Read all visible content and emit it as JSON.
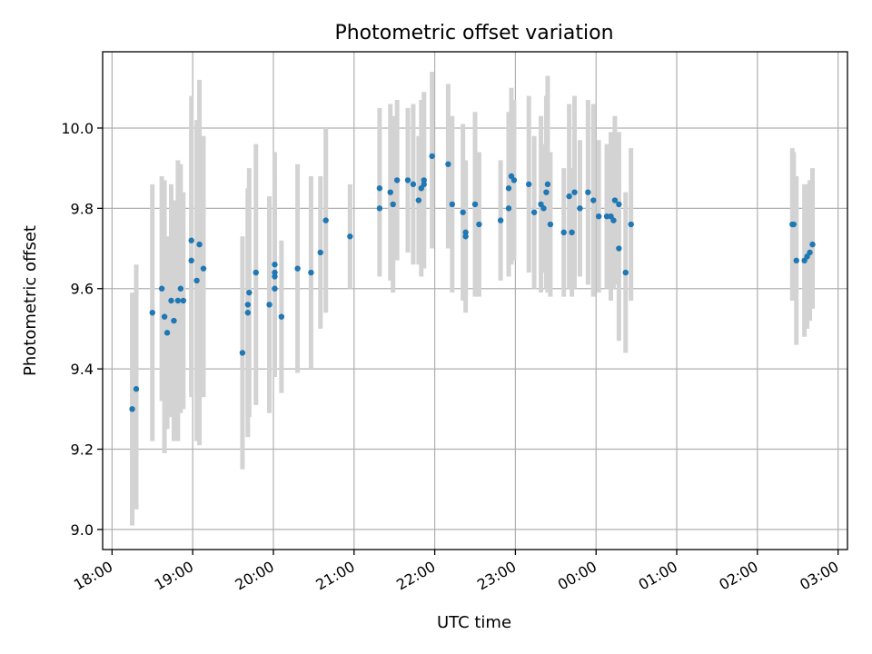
{
  "chart_data": {
    "type": "scatter",
    "title": "Photometric offset variation",
    "xlabel": "UTC time",
    "ylabel": "Photometric offset",
    "grid": true,
    "xlim": [
      "17:53",
      "03:07"
    ],
    "ylim": [
      8.95,
      10.19
    ],
    "x_axis_type": "time",
    "x_ticks": [
      "18:00",
      "19:00",
      "20:00",
      "21:00",
      "22:00",
      "23:00",
      "00:00",
      "01:00",
      "02:00",
      "03:00"
    ],
    "y_ticks": [
      9.0,
      9.2,
      9.4,
      9.6,
      9.8,
      10.0
    ],
    "y_tick_labels": [
      "9.0",
      "9.2",
      "9.4",
      "9.6",
      "9.8",
      "10.0"
    ],
    "point_color": "#1f77b4",
    "errorbar_color": "#d3d3d3",
    "series": [
      {
        "x": [
          "18:15",
          "18:18",
          "18:30",
          "18:37",
          "18:39",
          "18:41",
          "18:44",
          "18:46",
          "18:49",
          "18:51",
          "18:53",
          "18:59",
          "18:59",
          "19:03",
          "19:05",
          "19:08",
          "19:37",
          "19:41",
          "19:41",
          "19:42",
          "19:47",
          "19:57",
          "20:01",
          "20:01",
          "20:01",
          "20:01",
          "20:06",
          "20:18",
          "20:28",
          "20:35",
          "20:39",
          "20:57",
          "21:19",
          "21:19",
          "21:27",
          "21:29",
          "21:32",
          "21:40",
          "21:44",
          "21:48",
          "21:50",
          "21:52",
          "21:52",
          "21:58",
          "22:10",
          "22:13",
          "22:21",
          "22:23",
          "22:23",
          "22:30",
          "22:33",
          "22:49",
          "22:55",
          "22:55",
          "22:57",
          "22:59",
          "23:10",
          "23:14",
          "23:19",
          "23:21",
          "23:23",
          "23:24",
          "23:26",
          "23:36",
          "23:40",
          "23:42",
          "23:44",
          "23:48",
          "23:54",
          "23:58",
          "00:02",
          "00:08",
          "00:11",
          "00:13",
          "00:14",
          "00:17",
          "00:17",
          "00:22",
          "00:26"
        ],
        "y": [
          9.3,
          9.35,
          9.54,
          9.6,
          9.53,
          9.49,
          9.57,
          9.52,
          9.57,
          9.6,
          9.57,
          9.67,
          9.72,
          9.62,
          9.71,
          9.65,
          9.44,
          9.54,
          9.56,
          9.59,
          9.64,
          9.56,
          9.66,
          9.64,
          9.63,
          9.6,
          9.53,
          9.65,
          9.64,
          9.69,
          9.77,
          9.73,
          9.85,
          9.8,
          9.84,
          9.81,
          9.87,
          9.87,
          9.86,
          9.82,
          9.85,
          9.87,
          9.86,
          9.93,
          9.91,
          9.81,
          9.79,
          9.73,
          9.74,
          9.81,
          9.76,
          9.77,
          9.8,
          9.85,
          9.88,
          9.87,
          9.86,
          9.79,
          9.81,
          9.8,
          9.84,
          9.86,
          9.76,
          9.74,
          9.83,
          9.74,
          9.84,
          9.8,
          9.84,
          9.82,
          9.78,
          9.78,
          9.78,
          9.77,
          9.82,
          9.81,
          9.7,
          9.64,
          9.76
        ],
        "y_low": [
          9.01,
          9.05,
          9.22,
          9.32,
          9.19,
          9.25,
          9.28,
          9.22,
          9.22,
          9.29,
          9.3,
          9.33,
          9.34,
          9.22,
          9.21,
          9.33,
          9.15,
          9.23,
          9.29,
          9.28,
          9.31,
          9.29,
          9.38,
          9.4,
          9.4,
          9.39,
          9.34,
          9.39,
          9.4,
          9.5,
          9.54,
          9.6,
          9.65,
          9.63,
          9.62,
          9.59,
          9.67,
          9.69,
          9.66,
          9.66,
          9.63,
          9.65,
          9.7,
          9.7,
          9.7,
          9.59,
          9.57,
          9.54,
          9.58,
          9.58,
          9.58,
          9.62,
          9.63,
          9.66,
          9.66,
          9.67,
          9.64,
          9.6,
          9.59,
          9.64,
          9.6,
          9.59,
          9.58,
          9.58,
          9.6,
          9.58,
          9.6,
          9.63,
          9.61,
          9.58,
          9.59,
          9.6,
          9.57,
          9.6,
          9.61,
          9.63,
          9.47,
          9.44,
          9.57
        ],
        "y_high": [
          9.59,
          9.66,
          9.86,
          9.88,
          9.87,
          9.73,
          9.86,
          9.82,
          9.92,
          9.91,
          9.84,
          10.01,
          10.08,
          10.02,
          10.12,
          9.98,
          9.73,
          9.85,
          9.83,
          9.9,
          9.96,
          9.83,
          9.94,
          9.88,
          9.86,
          9.81,
          9.72,
          9.91,
          9.88,
          9.88,
          10.0,
          9.86,
          10.05,
          9.97,
          10.06,
          10.03,
          10.07,
          10.05,
          10.06,
          9.98,
          10.07,
          10.09,
          10.02,
          10.14,
          10.11,
          10.03,
          10.01,
          9.92,
          9.9,
          10.04,
          9.94,
          9.92,
          9.97,
          10.04,
          10.1,
          10.07,
          10.08,
          9.98,
          10.03,
          9.96,
          10.08,
          10.13,
          9.94,
          9.9,
          10.06,
          9.9,
          10.08,
          9.97,
          10.07,
          10.06,
          9.97,
          9.96,
          9.99,
          9.94,
          10.03,
          9.99,
          9.93,
          9.84,
          9.95
        ]
      },
      {
        "x": [
          "02:26",
          "02:27",
          "02:29",
          "02:35",
          "02:37",
          "02:39",
          "02:41"
        ],
        "y": [
          9.76,
          9.76,
          9.67,
          9.67,
          9.68,
          9.69,
          9.71
        ],
        "y_low": [
          9.57,
          9.58,
          9.46,
          9.48,
          9.5,
          9.52,
          9.55
        ],
        "y_high": [
          9.95,
          9.94,
          9.88,
          9.86,
          9.86,
          9.87,
          9.9
        ]
      }
    ]
  }
}
